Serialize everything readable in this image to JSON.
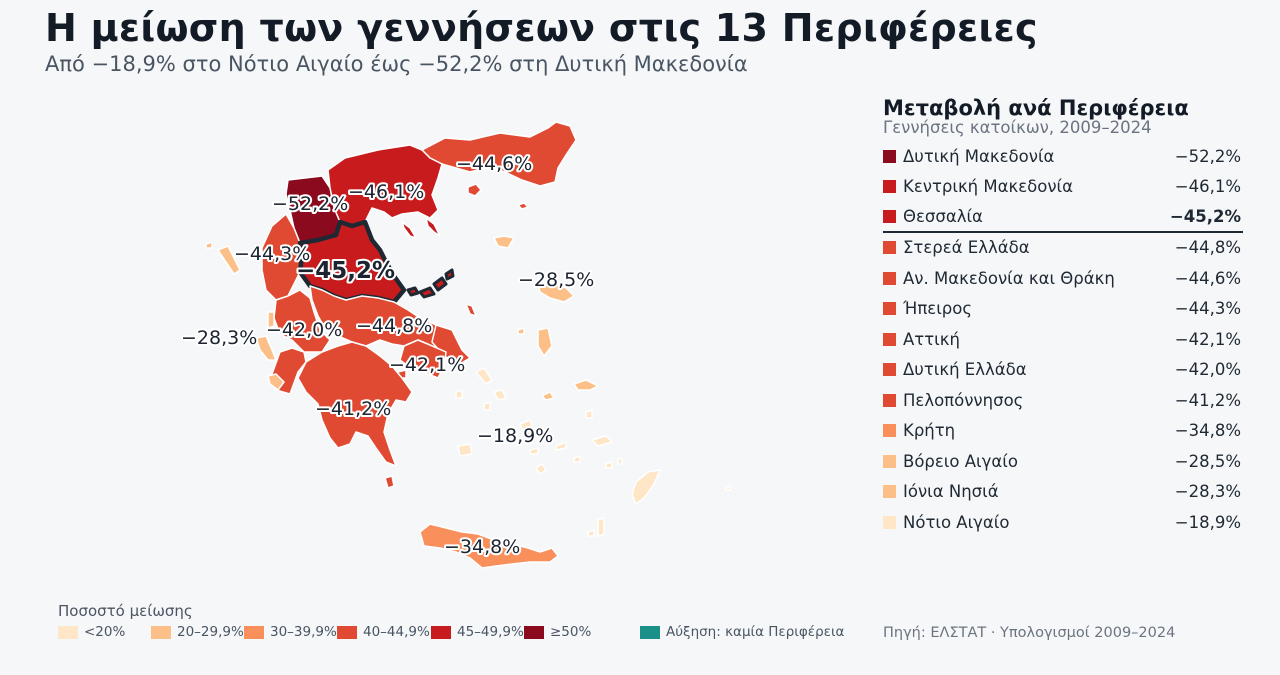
{
  "header": {
    "title": "Η μείωση των γεννήσεων στις 13 Περιφέρειες",
    "subtitle": "Από −18,9% στο Νότιο Αιγαίο έως −52,2% στη Δυτική Μακεδονία"
  },
  "panel": {
    "title": "Μεταβολή ανά Περιφέρεια",
    "subtitle": "Γεννήσεις κατοίκων, 2009–2024",
    "rows": [
      {
        "name": "Δυτική Μακεδονία",
        "value": "−52,2%",
        "color": "#8b0a1e"
      },
      {
        "name": "Κεντρική Μακεδονία",
        "value": "−46,1%",
        "color": "#c81b1d"
      },
      {
        "name": "Θεσσαλία",
        "value": "−45,2%",
        "color": "#c81b1d"
      },
      {
        "name": "Στερεά Ελλάδα",
        "value": "−44,8%",
        "color": "#e14a32"
      },
      {
        "name": "Αν. Μακεδονία και Θράκη",
        "value": "−44,6%",
        "color": "#e14a32"
      },
      {
        "name": "Ήπειρος",
        "value": "−44,3%",
        "color": "#e14a32"
      },
      {
        "name": "Αττική",
        "value": "−42,1%",
        "color": "#e14a32"
      },
      {
        "name": "Δυτική Ελλάδα",
        "value": "−42,0%",
        "color": "#e14a32"
      },
      {
        "name": "Πελοπόννησος",
        "value": "−41,2%",
        "color": "#e14a32"
      },
      {
        "name": "Κρήτη",
        "value": "−34,8%",
        "color": "#f98f5a"
      },
      {
        "name": "Βόρειο Αιγαίο",
        "value": "−28,5%",
        "color": "#fdbf88"
      },
      {
        "name": "Ιόνια Νησιά",
        "value": "−28,3%",
        "color": "#fdbf88"
      },
      {
        "name": "Νότιο Αιγαίο",
        "value": "−18,9%",
        "color": "#fee6c6"
      }
    ]
  },
  "map": {
    "labels": {
      "dyt_makedonia": "−52,2%",
      "kent_makedonia": "−46,1%",
      "an_makedonia": "−44,6%",
      "ipeiros": "−44,3%",
      "thessalia": "−45,2%",
      "vor_aigaio": "−28,5%",
      "ionia": "−28,3%",
      "dyt_ellada": "−42,0%",
      "sterea": "−44,8%",
      "attiki": "−42,1%",
      "peloponnisos": "−41,2%",
      "not_aigaio": "−18,9%",
      "kriti": "−34,8%"
    },
    "highlight_color": "#1f2933"
  },
  "legend": {
    "title": "Ποσοστό μείωσης",
    "items": [
      {
        "label": "<20%",
        "color": "#fee6c6"
      },
      {
        "label": "20–29,9%",
        "color": "#fdbf88"
      },
      {
        "label": "30–39,9%",
        "color": "#f98f5a"
      },
      {
        "label": "40–44,9%",
        "color": "#e14a32"
      },
      {
        "label": "45–49,9%",
        "color": "#c81b1d"
      },
      {
        "label": "≥50%",
        "color": "#8b0a1e"
      }
    ],
    "increase": {
      "label": "Αύξηση: καμία Περιφέρεια",
      "color": "#1a9088"
    }
  },
  "source": "Πηγή: ΕΛΣΤΑΤ · Υπολογισμοί 2009–2024"
}
